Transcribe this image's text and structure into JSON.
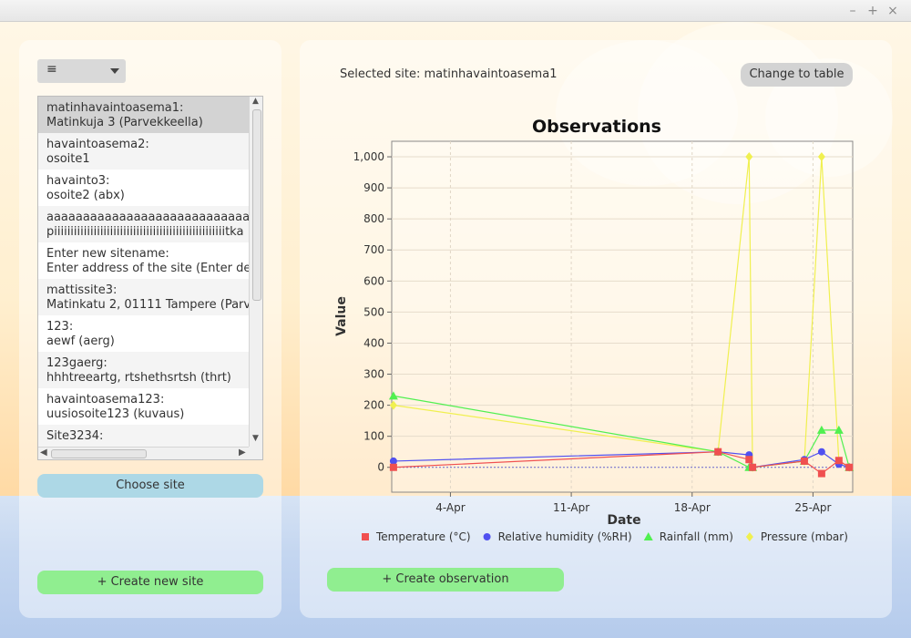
{
  "window": {
    "controls": [
      "–",
      "+",
      "×"
    ]
  },
  "left": {
    "menu_button": "≡",
    "sites": [
      {
        "line1": "matinhavaintoasema1:",
        "line2": "Matinkuja 3 (Parvekkeella)"
      },
      {
        "line1": "havaintoasema2:",
        "line2": "osoite1"
      },
      {
        "line1": "havainto3:",
        "line2": "osoite2 (abx)"
      },
      {
        "line1": "aaaaaaaaaaaaaaaaaaaaaaaaaaaaa",
        "line2": "piiiiiiiiiiiiiiiiiiiiiiiiiiiiiiiiiiiiiiiiiiiiiiiiiiiitka"
      },
      {
        "line1": "Enter new sitename:",
        "line2": "Enter address of the site (Enter de"
      },
      {
        "line1": "mattissite3:",
        "line2": "Matinkatu 2, 01111 Tampere (Parv"
      },
      {
        "line1": "123:",
        "line2": "aewf (aerg)"
      },
      {
        "line1": "123gaerg:",
        "line2": "hhhtreeartg, rtshethsrtsh  (thrt)"
      },
      {
        "line1": "havaintoasema123:",
        "line2": "uusiosoite123 (kuvaus)"
      },
      {
        "line1": "Site3234:",
        "line2": ""
      }
    ],
    "choose_site": "Choose site",
    "create_site": "+ Create new site"
  },
  "right": {
    "selected_site": "Selected site: matinhavaintoasema1",
    "change_to_table": "Change to table",
    "create_observation": "+ Create observation"
  },
  "chart_data": {
    "type": "line",
    "title": "Observations",
    "xlabel": "Date",
    "ylabel": "Value",
    "x_ticks": [
      "4-Apr",
      "11-Apr",
      "18-Apr",
      "25-Apr"
    ],
    "x_tick_days": [
      4,
      11,
      18,
      25
    ],
    "x_range_days": [
      0.6,
      27.3
    ],
    "ylim": [
      -80,
      1050
    ],
    "y_ticks": [
      0,
      100,
      200,
      300,
      400,
      500,
      600,
      700,
      800,
      900,
      1000
    ],
    "y_tick_labels": [
      "0",
      "100",
      "200",
      "300",
      "400",
      "500",
      "600",
      "700",
      "800",
      "900",
      "1,000"
    ],
    "legend_position": "bottom",
    "series": [
      {
        "name": "Temperature (°C)",
        "color": "#f05050",
        "marker": "square",
        "points": [
          [
            0.7,
            0
          ],
          [
            19.5,
            50
          ],
          [
            21.3,
            25
          ],
          [
            21.5,
            0
          ],
          [
            24.5,
            20
          ],
          [
            25.5,
            -20
          ],
          [
            26.5,
            22
          ],
          [
            27.1,
            0
          ]
        ]
      },
      {
        "name": "Relative humidity (%RH)",
        "color": "#5050f0",
        "marker": "circle",
        "points": [
          [
            0.7,
            20
          ],
          [
            19.5,
            50
          ],
          [
            21.3,
            40
          ],
          [
            21.5,
            0
          ],
          [
            24.5,
            25
          ],
          [
            25.5,
            50
          ],
          [
            26.5,
            10
          ],
          [
            27.1,
            0
          ]
        ]
      },
      {
        "name": "Rainfall (mm)",
        "color": "#50f050",
        "marker": "triangle",
        "points": [
          [
            0.7,
            230
          ],
          [
            19.5,
            50
          ],
          [
            21.3,
            0
          ],
          [
            21.5,
            0
          ],
          [
            24.5,
            20
          ],
          [
            25.5,
            120
          ],
          [
            26.5,
            120
          ],
          [
            27.1,
            0
          ]
        ]
      },
      {
        "name": "Pressure (mbar)",
        "color": "#f0f050",
        "marker": "diamond",
        "points": [
          [
            0.7,
            200
          ],
          [
            19.5,
            50
          ],
          [
            21.3,
            1000
          ],
          [
            21.5,
            0
          ],
          [
            24.5,
            20
          ],
          [
            25.5,
            1000
          ],
          [
            26.5,
            20
          ],
          [
            27.1,
            0
          ]
        ]
      }
    ]
  }
}
